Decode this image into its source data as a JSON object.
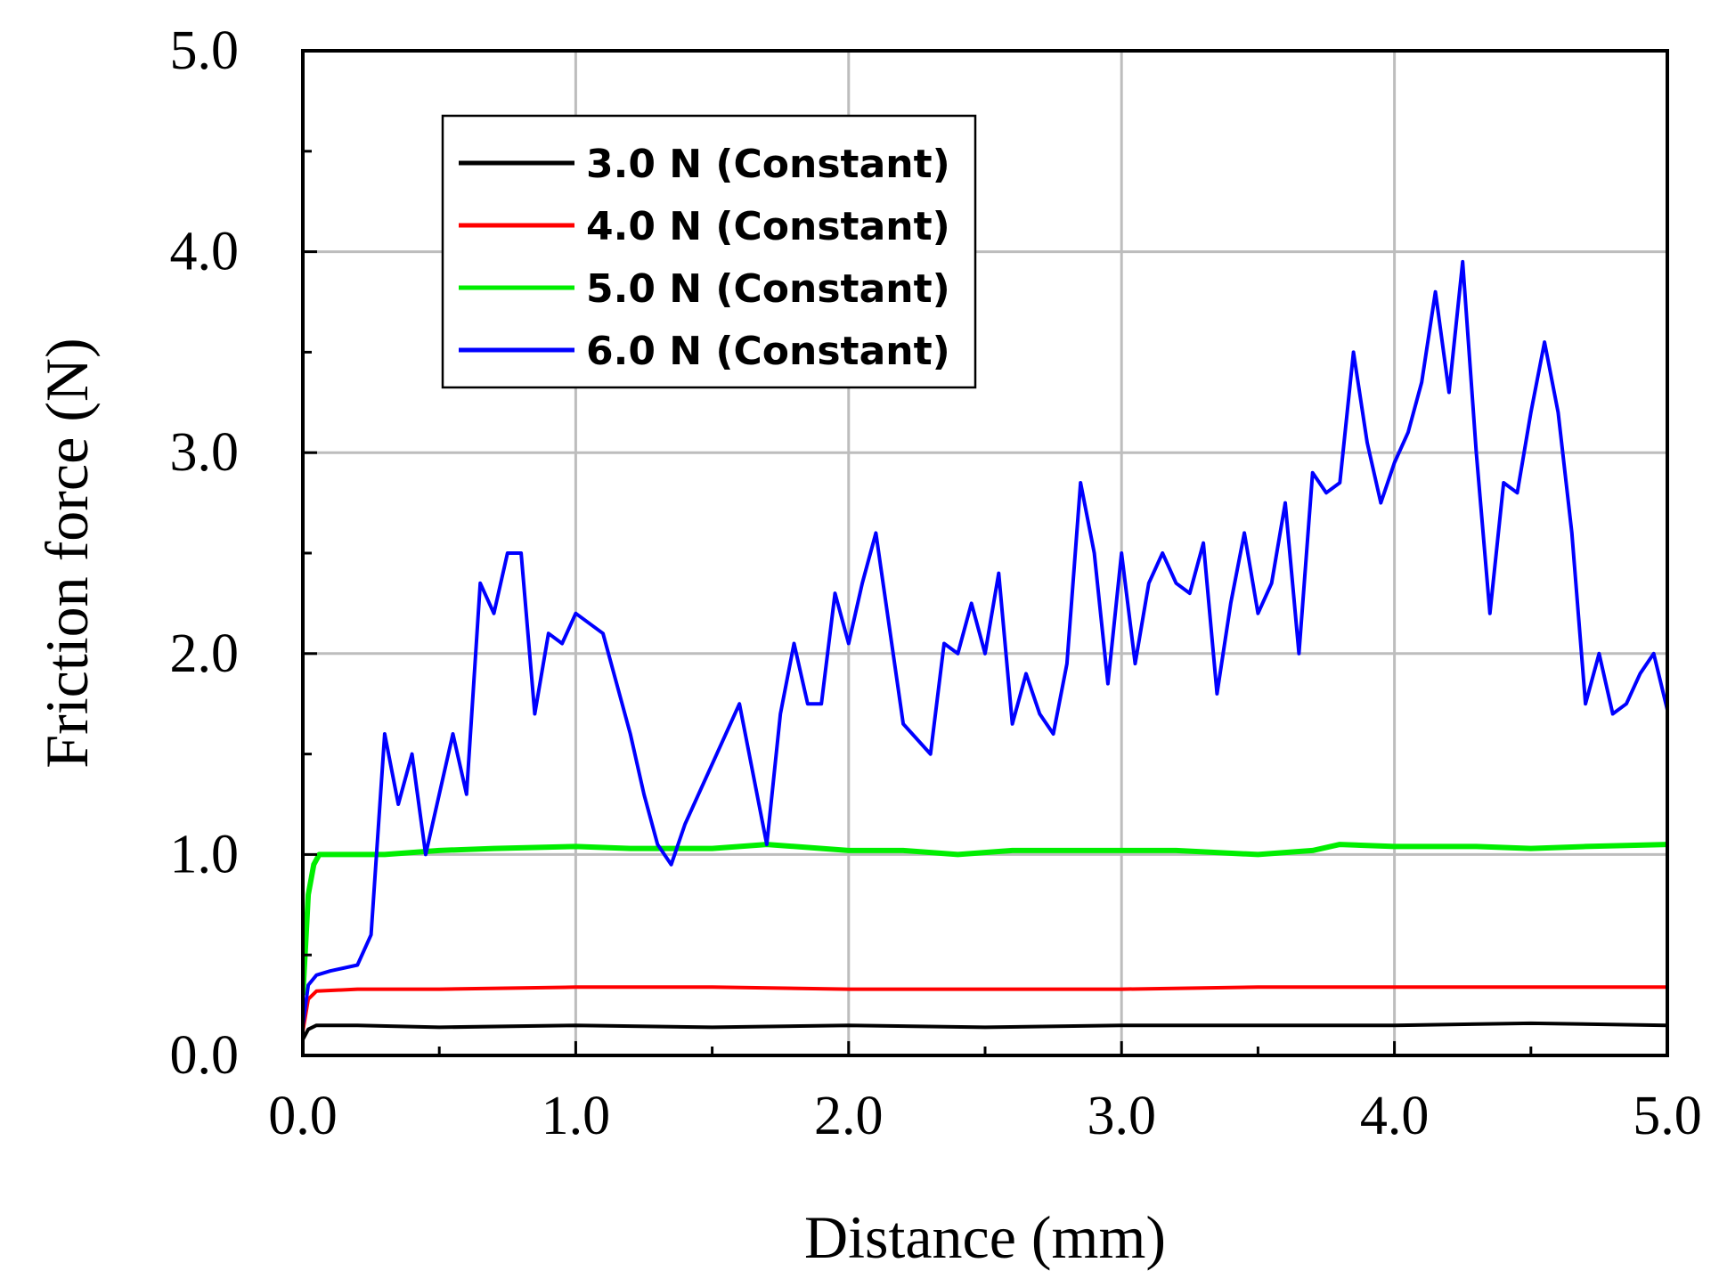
{
  "chart_data": {
    "type": "line",
    "title": "",
    "xlabel": "Distance (mm)",
    "ylabel": "Friction force (N)",
    "xlim": [
      0,
      5
    ],
    "ylim": [
      0,
      5
    ],
    "xticks": [
      0,
      1,
      2,
      3,
      4,
      5
    ],
    "yticks": [
      0,
      1,
      2,
      3,
      4,
      5
    ],
    "xtick_labels": [
      "0.0",
      "1.0",
      "2.0",
      "3.0",
      "4.0",
      "5.0"
    ],
    "ytick_labels": [
      "0.0",
      "1.0",
      "2.0",
      "3.0",
      "4.0",
      "5.0"
    ],
    "grid": true,
    "legend_position": "top-left",
    "series": [
      {
        "name": "3.0 N (Constant)",
        "color": "#000000",
        "x": [
          0,
          0.02,
          0.05,
          0.2,
          0.5,
          1.0,
          1.5,
          2.0,
          2.5,
          3.0,
          3.5,
          4.0,
          4.5,
          5.0
        ],
        "y": [
          0.08,
          0.13,
          0.15,
          0.15,
          0.14,
          0.15,
          0.14,
          0.15,
          0.14,
          0.15,
          0.15,
          0.15,
          0.16,
          0.15
        ]
      },
      {
        "name": "4.0 N (Constant)",
        "color": "#ff0000",
        "x": [
          0,
          0.02,
          0.05,
          0.2,
          0.5,
          1.0,
          1.5,
          2.0,
          2.5,
          3.0,
          3.5,
          4.0,
          4.5,
          5.0
        ],
        "y": [
          0.12,
          0.28,
          0.32,
          0.33,
          0.33,
          0.34,
          0.34,
          0.33,
          0.33,
          0.33,
          0.34,
          0.34,
          0.34,
          0.34
        ]
      },
      {
        "name": "5.0 N (Constant)",
        "color": "#00ee00",
        "x": [
          0,
          0.01,
          0.02,
          0.04,
          0.06,
          0.1,
          0.2,
          0.3,
          0.5,
          0.7,
          1.0,
          1.2,
          1.5,
          1.7,
          2.0,
          2.2,
          2.4,
          2.6,
          3.0,
          3.2,
          3.5,
          3.7,
          3.8,
          4.0,
          4.3,
          4.5,
          4.7,
          5.0
        ],
        "y": [
          0.3,
          0.55,
          0.8,
          0.95,
          1.0,
          1.0,
          1.0,
          1.0,
          1.02,
          1.03,
          1.04,
          1.03,
          1.03,
          1.05,
          1.02,
          1.02,
          1.0,
          1.02,
          1.02,
          1.02,
          1.0,
          1.02,
          1.05,
          1.04,
          1.04,
          1.03,
          1.04,
          1.05
        ]
      },
      {
        "name": "6.0 N (Constant)",
        "color": "#0000ff",
        "x": [
          0,
          0.02,
          0.05,
          0.1,
          0.2,
          0.25,
          0.3,
          0.35,
          0.4,
          0.45,
          0.5,
          0.55,
          0.6,
          0.65,
          0.7,
          0.75,
          0.8,
          0.85,
          0.9,
          0.95,
          1.0,
          1.1,
          1.2,
          1.25,
          1.3,
          1.35,
          1.4,
          1.45,
          1.5,
          1.6,
          1.7,
          1.75,
          1.8,
          1.85,
          1.9,
          1.95,
          2.0,
          2.05,
          2.1,
          2.2,
          2.3,
          2.35,
          2.4,
          2.45,
          2.5,
          2.55,
          2.6,
          2.65,
          2.7,
          2.75,
          2.8,
          2.85,
          2.9,
          2.95,
          3.0,
          3.05,
          3.1,
          3.15,
          3.2,
          3.25,
          3.3,
          3.35,
          3.4,
          3.45,
          3.5,
          3.55,
          3.6,
          3.65,
          3.7,
          3.75,
          3.8,
          3.85,
          3.9,
          3.95,
          4.0,
          4.05,
          4.1,
          4.15,
          4.2,
          4.25,
          4.3,
          4.35,
          4.4,
          4.45,
          4.5,
          4.55,
          4.6,
          4.65,
          4.7,
          4.75,
          4.8,
          4.85,
          4.9,
          4.95,
          5.0
        ],
        "y": [
          0.15,
          0.35,
          0.4,
          0.42,
          0.45,
          0.6,
          1.6,
          1.25,
          1.5,
          1.0,
          1.3,
          1.6,
          1.3,
          2.35,
          2.2,
          2.5,
          2.5,
          1.7,
          2.1,
          2.05,
          2.2,
          2.1,
          1.6,
          1.3,
          1.05,
          0.95,
          1.15,
          1.3,
          1.45,
          1.75,
          1.05,
          1.7,
          2.05,
          1.75,
          1.75,
          2.3,
          2.05,
          2.35,
          2.6,
          1.65,
          1.5,
          2.05,
          2.0,
          2.25,
          2.0,
          2.4,
          1.65,
          1.9,
          1.7,
          1.6,
          1.95,
          2.85,
          2.5,
          1.85,
          2.5,
          1.95,
          2.35,
          2.5,
          2.35,
          2.3,
          2.55,
          1.8,
          2.25,
          2.6,
          2.2,
          2.35,
          2.75,
          2.0,
          2.9,
          2.8,
          2.85,
          3.5,
          3.05,
          2.75,
          2.95,
          3.1,
          3.35,
          3.8,
          3.3,
          3.95,
          3.0,
          2.2,
          2.85,
          2.8,
          3.2,
          3.55,
          3.2,
          2.6,
          1.75,
          2.0,
          1.7,
          1.75,
          1.9,
          2.0,
          1.72
        ]
      }
    ]
  }
}
